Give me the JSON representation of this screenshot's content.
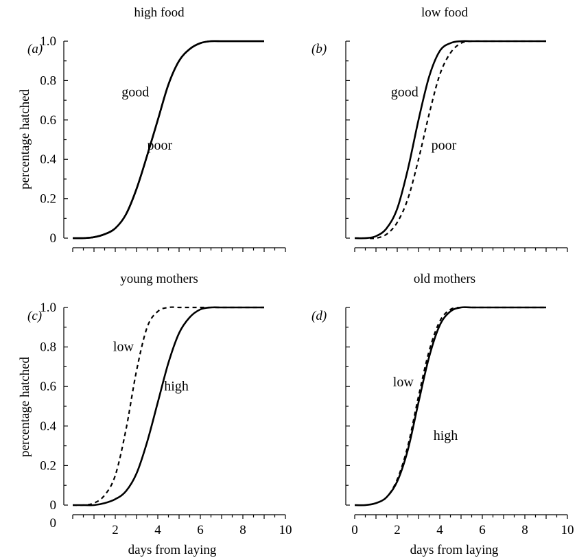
{
  "chart_data": [
    {
      "type": "line",
      "panel_label": "(a)",
      "title": "high food",
      "xlabel": "",
      "ylabel": "percentage hatched",
      "xlim": [
        0,
        10
      ],
      "ylim": [
        0,
        1
      ],
      "x_tick_labels": [],
      "y_tick_labels": [
        "0",
        "0.2",
        "0.4",
        "0.6",
        "0.8",
        "1.0"
      ],
      "series": [
        {
          "name": "good",
          "style": "solid",
          "x": [
            0,
            0.5,
            1,
            1.5,
            2,
            2.5,
            3,
            3.5,
            4,
            4.5,
            5,
            5.5,
            6,
            6.5,
            7,
            7.5,
            8,
            8.5,
            9
          ],
          "y": [
            0,
            0,
            0.005,
            0.02,
            0.05,
            0.12,
            0.25,
            0.42,
            0.6,
            0.78,
            0.9,
            0.96,
            0.99,
            1,
            1,
            1,
            1,
            1,
            1
          ]
        },
        {
          "name": "poor",
          "style": "solid",
          "x": [
            0,
            0.5,
            1,
            1.5,
            2,
            2.5,
            3,
            3.5,
            4,
            4.5,
            5,
            5.5,
            6,
            6.5,
            7,
            7.5,
            8,
            8.5,
            9
          ],
          "y": [
            0,
            0,
            0.005,
            0.02,
            0.05,
            0.12,
            0.25,
            0.42,
            0.6,
            0.78,
            0.9,
            0.96,
            0.99,
            1,
            1,
            1,
            1,
            1,
            1
          ]
        }
      ],
      "annotations": [
        {
          "text": "good",
          "x": 2.3,
          "y": 0.72
        },
        {
          "text": "poor",
          "x": 3.5,
          "y": 0.45
        }
      ]
    },
    {
      "type": "line",
      "panel_label": "(b)",
      "title": "low food",
      "xlabel": "",
      "ylabel": "",
      "xlim": [
        0,
        10
      ],
      "ylim": [
        0,
        1
      ],
      "x_tick_labels": [],
      "y_tick_labels": [],
      "series": [
        {
          "name": "good",
          "style": "solid",
          "x": [
            0,
            0.5,
            1,
            1.5,
            2,
            2.5,
            3,
            3.5,
            4,
            4.5,
            5,
            5.5,
            6,
            6.5,
            7,
            7.5,
            8,
            8.5,
            9
          ],
          "y": [
            0,
            0,
            0.01,
            0.05,
            0.15,
            0.35,
            0.6,
            0.82,
            0.95,
            0.99,
            1,
            1,
            1,
            1,
            1,
            1,
            1,
            1,
            1
          ]
        },
        {
          "name": "poor",
          "style": "dashed",
          "x": [
            0,
            0.5,
            1,
            1.5,
            2,
            2.5,
            3,
            3.5,
            4,
            4.5,
            5,
            5.5,
            6,
            6.5,
            7,
            7.5,
            8,
            8.5,
            9
          ],
          "y": [
            0,
            0,
            0,
            0.02,
            0.08,
            0.2,
            0.4,
            0.63,
            0.83,
            0.94,
            0.99,
            1,
            1,
            1,
            1,
            1,
            1,
            1,
            1
          ]
        }
      ],
      "annotations": [
        {
          "text": "good",
          "x": 1.7,
          "y": 0.72
        },
        {
          "text": "poor",
          "x": 3.6,
          "y": 0.45
        }
      ]
    },
    {
      "type": "line",
      "panel_label": "(c)",
      "title": "young mothers",
      "xlabel": "days from laying",
      "ylabel": "percentage hatched",
      "xlim": [
        0,
        10
      ],
      "ylim": [
        0,
        1
      ],
      "x_tick_labels": [
        "2",
        "4",
        "6",
        "8",
        "10"
      ],
      "y_tick_labels": [
        "0",
        "0.2",
        "0.4",
        "0.6",
        "0.8",
        "1.0"
      ],
      "series": [
        {
          "name": "low",
          "style": "dashed",
          "x": [
            0,
            0.5,
            1,
            1.5,
            2,
            2.5,
            3,
            3.5,
            4,
            4.5,
            5,
            5.5,
            6,
            6.5,
            7,
            7.5,
            8,
            8.5,
            9
          ],
          "y": [
            0,
            0,
            0.01,
            0.05,
            0.15,
            0.38,
            0.68,
            0.9,
            0.98,
            1,
            1,
            1,
            1,
            1,
            1,
            1,
            1,
            1,
            1
          ]
        },
        {
          "name": "high",
          "style": "solid",
          "x": [
            0,
            0.5,
            1,
            1.5,
            2,
            2.5,
            3,
            3.5,
            4,
            4.5,
            5,
            5.5,
            6,
            6.5,
            7,
            7.5,
            8,
            8.5,
            9
          ],
          "y": [
            0,
            0,
            0,
            0.01,
            0.03,
            0.07,
            0.16,
            0.32,
            0.52,
            0.72,
            0.87,
            0.95,
            0.99,
            1,
            1,
            1,
            1,
            1,
            1
          ]
        }
      ],
      "annotations": [
        {
          "text": "low",
          "x": 1.9,
          "y": 0.78
        },
        {
          "text": "high",
          "x": 4.3,
          "y": 0.58
        }
      ]
    },
    {
      "type": "line",
      "panel_label": "(d)",
      "title": "old mothers",
      "xlabel": "days from laying",
      "ylabel": "",
      "xlim": [
        0,
        10
      ],
      "ylim": [
        0,
        1
      ],
      "x_tick_labels": [
        "0",
        "2",
        "4",
        "6",
        "8",
        "10"
      ],
      "y_tick_labels": [],
      "series": [
        {
          "name": "low",
          "style": "dashed",
          "x": [
            0,
            0.5,
            1,
            1.5,
            2,
            2.5,
            3,
            3.5,
            4,
            4.5,
            5,
            5.5,
            6,
            6.5,
            7,
            7.5,
            8,
            8.5,
            9
          ],
          "y": [
            0,
            0,
            0.01,
            0.04,
            0.13,
            0.3,
            0.55,
            0.78,
            0.93,
            0.99,
            1,
            1,
            1,
            1,
            1,
            1,
            1,
            1,
            1
          ]
        },
        {
          "name": "high",
          "style": "solid",
          "x": [
            0,
            0.5,
            1,
            1.5,
            2,
            2.5,
            3,
            3.5,
            4,
            4.5,
            5,
            5.5,
            6,
            6.5,
            7,
            7.5,
            8,
            8.5,
            9
          ],
          "y": [
            0,
            0,
            0.01,
            0.04,
            0.12,
            0.28,
            0.52,
            0.75,
            0.91,
            0.98,
            1,
            1,
            1,
            1,
            1,
            1,
            1,
            1,
            1
          ]
        }
      ],
      "annotations": [
        {
          "text": "low",
          "x": 1.8,
          "y": 0.6
        },
        {
          "text": "high",
          "x": 3.7,
          "y": 0.33
        }
      ]
    }
  ]
}
